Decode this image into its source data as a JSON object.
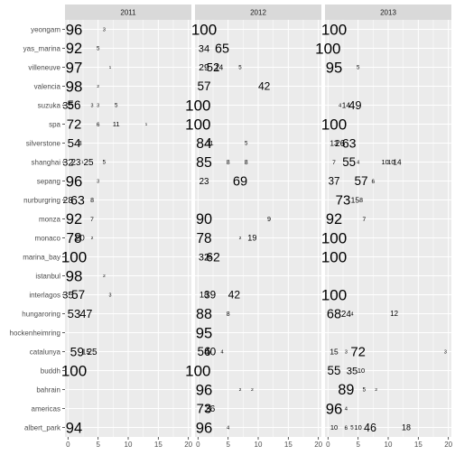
{
  "chart_data": {
    "type": "scatter",
    "title": "",
    "xlabel": "",
    "ylabel": "",
    "xlim": [
      -0.5,
      20.5
    ],
    "xticks": [
      0,
      5,
      10,
      15,
      20
    ],
    "grid": true,
    "legend": "none",
    "colors": {
      "panel_bg": "#ebebeb",
      "strip_bg": "#d9d9d9",
      "grid": "#ffffff",
      "text": "#000000",
      "axis_text": "#4d4d4d"
    },
    "categories": [
      "yeongam",
      "yas_marina",
      "villeneuve",
      "valencia",
      "suzuka",
      "spa",
      "silverstone",
      "shanghai",
      "sepang",
      "nurburgring",
      "monza",
      "monaco",
      "marina_bay",
      "istanbul",
      "interlagos",
      "hungaroring",
      "hockenheimring",
      "catalunya",
      "buddh",
      "bahrain",
      "americas",
      "albert_park"
    ],
    "facets": [
      {
        "label": "2011",
        "points": [
          {
            "track": "yeongam",
            "x": 1,
            "label": "96"
          },
          {
            "track": "yeongam",
            "x": 6,
            "label": "3"
          },
          {
            "track": "yas_marina",
            "x": 1,
            "label": "92"
          },
          {
            "track": "yas_marina",
            "x": 5,
            "label": "5"
          },
          {
            "track": "villeneuve",
            "x": 1,
            "label": "97"
          },
          {
            "track": "villeneuve",
            "x": 7,
            "label": "1"
          },
          {
            "track": "valencia",
            "x": 1,
            "label": "98"
          },
          {
            "track": "valencia",
            "x": 5,
            "label": "2"
          },
          {
            "track": "suzuka",
            "x": 0,
            "label": "35"
          },
          {
            "track": "suzuka",
            "x": 1,
            "label": "56"
          },
          {
            "track": "suzuka",
            "x": 4,
            "label": "3"
          },
          {
            "track": "suzuka",
            "x": 5,
            "label": "3"
          },
          {
            "track": "suzuka",
            "x": 8,
            "label": "5"
          },
          {
            "track": "spa",
            "x": 1,
            "label": "72"
          },
          {
            "track": "spa",
            "x": 5,
            "label": "6"
          },
          {
            "track": "spa",
            "x": 8,
            "label": "11"
          },
          {
            "track": "spa",
            "x": 13,
            "label": "1"
          },
          {
            "track": "silverstone",
            "x": 1,
            "label": "54"
          },
          {
            "track": "silverstone",
            "x": 2,
            "label": "8"
          },
          {
            "track": "shanghai",
            "x": 0,
            "label": "32"
          },
          {
            "track": "shanghai",
            "x": 1.3,
            "label": "23"
          },
          {
            "track": "shanghai",
            "x": 2.4,
            "label": "1"
          },
          {
            "track": "shanghai",
            "x": 3.4,
            "label": "25"
          },
          {
            "track": "shanghai",
            "x": 6,
            "label": "5"
          },
          {
            "track": "sepang",
            "x": 1,
            "label": "96"
          },
          {
            "track": "sepang",
            "x": 5,
            "label": "3"
          },
          {
            "track": "nurburgring",
            "x": 0,
            "label": "28"
          },
          {
            "track": "nurburgring",
            "x": 1.6,
            "label": "63"
          },
          {
            "track": "nurburgring",
            "x": 4,
            "label": "8"
          },
          {
            "track": "monza",
            "x": 1,
            "label": "92"
          },
          {
            "track": "monza",
            "x": 4,
            "label": "7"
          },
          {
            "track": "monaco",
            "x": 1,
            "label": "78"
          },
          {
            "track": "monaco",
            "x": 2,
            "label": "20"
          },
          {
            "track": "monaco",
            "x": 4,
            "label": "2"
          },
          {
            "track": "marina_bay",
            "x": 1,
            "label": "100"
          },
          {
            "track": "istanbul",
            "x": 1,
            "label": "98"
          },
          {
            "track": "istanbul",
            "x": 6,
            "label": "2"
          },
          {
            "track": "interlagos",
            "x": 0,
            "label": "35"
          },
          {
            "track": "interlagos",
            "x": 1.7,
            "label": "57"
          },
          {
            "track": "interlagos",
            "x": 7,
            "label": "3"
          },
          {
            "track": "hungaroring",
            "x": 1,
            "label": "53"
          },
          {
            "track": "hungaroring",
            "x": 3,
            "label": "47"
          },
          {
            "track": "catalunya",
            "x": 1.5,
            "label": "59"
          },
          {
            "track": "catalunya",
            "x": 3,
            "label": "15"
          },
          {
            "track": "catalunya",
            "x": 4,
            "label": "25"
          },
          {
            "track": "buddh",
            "x": 1,
            "label": "100"
          },
          {
            "track": "albert_park",
            "x": 1,
            "label": "94"
          }
        ]
      },
      {
        "label": "2012",
        "points": [
          {
            "track": "yeongam",
            "x": 1,
            "label": "100"
          },
          {
            "track": "yas_marina",
            "x": 1,
            "label": "34"
          },
          {
            "track": "yas_marina",
            "x": 4,
            "label": "65"
          },
          {
            "track": "villeneuve",
            "x": 1,
            "label": "29"
          },
          {
            "track": "villeneuve",
            "x": 2.5,
            "label": "52"
          },
          {
            "track": "villeneuve",
            "x": 3.5,
            "label": "14"
          },
          {
            "track": "villeneuve",
            "x": 7,
            "label": "5"
          },
          {
            "track": "valencia",
            "x": 1,
            "label": "57"
          },
          {
            "track": "valencia",
            "x": 11,
            "label": "42"
          },
          {
            "track": "suzuka",
            "x": 0,
            "label": "100"
          },
          {
            "track": "spa",
            "x": 0,
            "label": "100"
          },
          {
            "track": "silverstone",
            "x": 1,
            "label": "84"
          },
          {
            "track": "silverstone",
            "x": 2,
            "label": "11"
          },
          {
            "track": "silverstone",
            "x": 8,
            "label": "5"
          },
          {
            "track": "shanghai",
            "x": 1,
            "label": "85"
          },
          {
            "track": "shanghai",
            "x": 5,
            "label": "8"
          },
          {
            "track": "shanghai",
            "x": 8,
            "label": "8"
          },
          {
            "track": "sepang",
            "x": 1,
            "label": "23"
          },
          {
            "track": "sepang",
            "x": 7,
            "label": "69"
          },
          {
            "track": "monza",
            "x": 1,
            "label": "90"
          },
          {
            "track": "monza",
            "x": 11.8,
            "label": "9"
          },
          {
            "track": "monaco",
            "x": 1,
            "label": "78"
          },
          {
            "track": "monaco",
            "x": 7,
            "label": "2"
          },
          {
            "track": "monaco",
            "x": 9,
            "label": "19"
          },
          {
            "track": "marina_bay",
            "x": 1,
            "label": "32"
          },
          {
            "track": "marina_bay",
            "x": 2.5,
            "label": "62"
          },
          {
            "track": "marina_bay",
            "x": 2,
            "label": "6"
          },
          {
            "track": "interlagos",
            "x": 1,
            "label": "18"
          },
          {
            "track": "interlagos",
            "x": 2,
            "label": "39"
          },
          {
            "track": "interlagos",
            "x": 6,
            "label": "42"
          },
          {
            "track": "hungaroring",
            "x": 1,
            "label": "88"
          },
          {
            "track": "hungaroring",
            "x": 5,
            "label": "8"
          },
          {
            "track": "hockenheimring",
            "x": 1,
            "label": "95"
          },
          {
            "track": "catalunya",
            "x": 1,
            "label": "56"
          },
          {
            "track": "catalunya",
            "x": 2,
            "label": "40"
          },
          {
            "track": "catalunya",
            "x": 4,
            "label": "4"
          },
          {
            "track": "buddh",
            "x": 0,
            "label": "100"
          },
          {
            "track": "bahrain",
            "x": 1,
            "label": "96"
          },
          {
            "track": "bahrain",
            "x": 7,
            "label": "2"
          },
          {
            "track": "bahrain",
            "x": 9,
            "label": "2"
          },
          {
            "track": "americas",
            "x": 1,
            "label": "73"
          },
          {
            "track": "americas",
            "x": 2,
            "label": "26"
          },
          {
            "track": "albert_park",
            "x": 1,
            "label": "96"
          },
          {
            "track": "albert_park",
            "x": 5,
            "label": "4"
          }
        ]
      },
      {
        "label": "2013",
        "points": [
          {
            "track": "yeongam",
            "x": 1,
            "label": "100"
          },
          {
            "track": "yas_marina",
            "x": 0,
            "label": "100"
          },
          {
            "track": "villeneuve",
            "x": 1,
            "label": "95"
          },
          {
            "track": "villeneuve",
            "x": 5,
            "label": "5"
          },
          {
            "track": "suzuka",
            "x": 2,
            "label": "4"
          },
          {
            "track": "suzuka",
            "x": 3,
            "label": "14"
          },
          {
            "track": "suzuka",
            "x": 4.5,
            "label": "49"
          },
          {
            "track": "spa",
            "x": 1,
            "label": "100"
          },
          {
            "track": "silverstone",
            "x": 1,
            "label": "13"
          },
          {
            "track": "silverstone",
            "x": 2,
            "label": "26"
          },
          {
            "track": "silverstone",
            "x": 3.5,
            "label": "63"
          },
          {
            "track": "shanghai",
            "x": 1,
            "label": "7"
          },
          {
            "track": "shanghai",
            "x": 3.5,
            "label": "55"
          },
          {
            "track": "shanghai",
            "x": 5,
            "label": "4"
          },
          {
            "track": "shanghai",
            "x": 9.5,
            "label": "10"
          },
          {
            "track": "shanghai",
            "x": 10.5,
            "label": "10"
          },
          {
            "track": "shanghai",
            "x": 11.5,
            "label": "14"
          },
          {
            "track": "sepang",
            "x": 1,
            "label": "37"
          },
          {
            "track": "sepang",
            "x": 5.5,
            "label": "57"
          },
          {
            "track": "sepang",
            "x": 7.5,
            "label": "6"
          },
          {
            "track": "nurburgring",
            "x": 2.5,
            "label": "73"
          },
          {
            "track": "nurburgring",
            "x": 4.5,
            "label": "15"
          },
          {
            "track": "nurburgring",
            "x": 5.5,
            "label": "8"
          },
          {
            "track": "monza",
            "x": 1,
            "label": "92"
          },
          {
            "track": "monza",
            "x": 6,
            "label": "7"
          },
          {
            "track": "monaco",
            "x": 1,
            "label": "100"
          },
          {
            "track": "marina_bay",
            "x": 1,
            "label": "100"
          },
          {
            "track": "interlagos",
            "x": 1,
            "label": "100"
          },
          {
            "track": "hungaroring",
            "x": 1,
            "label": "68"
          },
          {
            "track": "hungaroring",
            "x": 3,
            "label": "24"
          },
          {
            "track": "hungaroring",
            "x": 4,
            "label": "4"
          },
          {
            "track": "hungaroring",
            "x": 11,
            "label": "12"
          },
          {
            "track": "catalunya",
            "x": 1,
            "label": "15"
          },
          {
            "track": "catalunya",
            "x": 3,
            "label": "3"
          },
          {
            "track": "catalunya",
            "x": 5,
            "label": "72"
          },
          {
            "track": "catalunya",
            "x": 19.5,
            "label": "3"
          },
          {
            "track": "buddh",
            "x": 1,
            "label": "55"
          },
          {
            "track": "buddh",
            "x": 4,
            "label": "35"
          },
          {
            "track": "buddh",
            "x": 5.5,
            "label": "10"
          },
          {
            "track": "bahrain",
            "x": 3,
            "label": "89"
          },
          {
            "track": "bahrain",
            "x": 6,
            "label": "5"
          },
          {
            "track": "bahrain",
            "x": 8,
            "label": "2"
          },
          {
            "track": "americas",
            "x": 1,
            "label": "96"
          },
          {
            "track": "americas",
            "x": 3,
            "label": "4"
          },
          {
            "track": "albert_park",
            "x": 1,
            "label": "10"
          },
          {
            "track": "albert_park",
            "x": 3,
            "label": "6"
          },
          {
            "track": "albert_park",
            "x": 4,
            "label": "5"
          },
          {
            "track": "albert_park",
            "x": 5,
            "label": "10"
          },
          {
            "track": "albert_park",
            "x": 7,
            "label": "46"
          },
          {
            "track": "albert_park",
            "x": 13,
            "label": "18"
          }
        ]
      }
    ]
  }
}
